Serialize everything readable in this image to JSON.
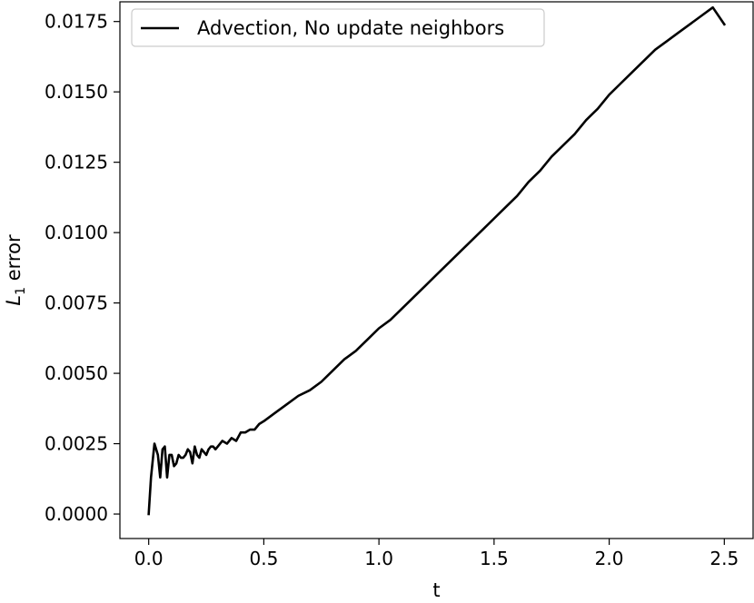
{
  "chart_data": {
    "type": "line",
    "title": "",
    "xlabel": "t",
    "ylabel": "error",
    "ylabel_math": {
      "base": "L",
      "subscript": "1"
    },
    "xlim": [
      -0.125,
      2.625
    ],
    "ylim": [
      -0.00087,
      0.0182
    ],
    "x_ticks": [
      0.0,
      0.5,
      1.0,
      1.5,
      2.0,
      2.5
    ],
    "x_tick_labels": [
      "0.0",
      "0.5",
      "1.0",
      "1.5",
      "2.0",
      "2.5"
    ],
    "y_ticks": [
      0.0,
      0.0025,
      0.005,
      0.0075,
      0.01,
      0.0125,
      0.015,
      0.0175
    ],
    "y_tick_labels": [
      "0.0000",
      "0.0025",
      "0.0050",
      "0.0075",
      "0.0100",
      "0.0125",
      "0.0150",
      "0.0175"
    ],
    "grid": false,
    "legend_position": "top-left",
    "series": [
      {
        "name": "Advection, No update neighbors",
        "color": "#000000",
        "x": [
          0.0,
          0.01,
          0.025,
          0.04,
          0.05,
          0.06,
          0.07,
          0.08,
          0.09,
          0.1,
          0.11,
          0.12,
          0.13,
          0.14,
          0.15,
          0.16,
          0.17,
          0.18,
          0.19,
          0.2,
          0.21,
          0.22,
          0.23,
          0.24,
          0.25,
          0.26,
          0.27,
          0.28,
          0.29,
          0.3,
          0.32,
          0.34,
          0.36,
          0.38,
          0.4,
          0.42,
          0.44,
          0.46,
          0.48,
          0.5,
          0.55,
          0.6,
          0.65,
          0.7,
          0.75,
          0.8,
          0.85,
          0.9,
          0.95,
          1.0,
          1.05,
          1.1,
          1.15,
          1.2,
          1.25,
          1.3,
          1.35,
          1.4,
          1.45,
          1.5,
          1.55,
          1.6,
          1.65,
          1.7,
          1.75,
          1.8,
          1.85,
          1.9,
          1.95,
          2.0,
          2.05,
          2.1,
          2.15,
          2.2,
          2.25,
          2.3,
          2.35,
          2.4,
          2.45,
          2.5
        ],
        "y": [
          0.0,
          0.0013,
          0.0025,
          0.0021,
          0.0013,
          0.0023,
          0.0024,
          0.0013,
          0.0021,
          0.0021,
          0.0017,
          0.0018,
          0.0021,
          0.002,
          0.002,
          0.0021,
          0.0023,
          0.0022,
          0.0018,
          0.0024,
          0.0021,
          0.002,
          0.0023,
          0.0022,
          0.0021,
          0.0023,
          0.0024,
          0.0024,
          0.0023,
          0.0024,
          0.0026,
          0.0025,
          0.0027,
          0.0026,
          0.0029,
          0.0029,
          0.003,
          0.003,
          0.0032,
          0.0033,
          0.0036,
          0.0039,
          0.0042,
          0.0044,
          0.0047,
          0.0051,
          0.0055,
          0.0058,
          0.0062,
          0.0066,
          0.0069,
          0.0073,
          0.0077,
          0.0081,
          0.0085,
          0.0089,
          0.0093,
          0.0097,
          0.0101,
          0.0105,
          0.0109,
          0.0113,
          0.0118,
          0.0122,
          0.0127,
          0.0131,
          0.0135,
          0.014,
          0.0144,
          0.0149,
          0.0153,
          0.0157,
          0.0161,
          0.0165,
          0.0168,
          0.0171,
          0.0174,
          0.0177,
          0.018,
          0.0174
        ]
      }
    ]
  }
}
